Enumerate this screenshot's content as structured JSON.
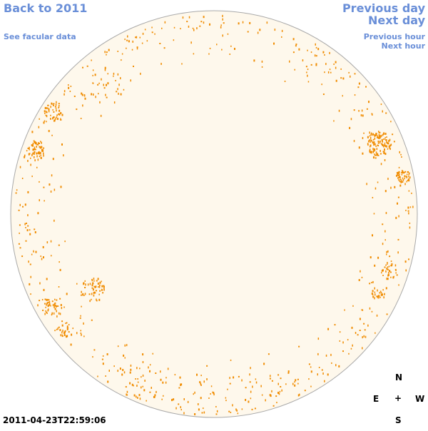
{
  "nav": {
    "back": "Back to 2011",
    "facular": "See facular data",
    "prev_day": "Previous day",
    "next_day": "Next day",
    "prev_hour": "Previous hour",
    "next_hour": "Next hour"
  },
  "timestamp": "2011-04-23T22:59:06",
  "compass": {
    "north": "N",
    "east": "E",
    "center": "+",
    "west": "W",
    "south": "S"
  },
  "colors": {
    "link": "#6a8fd8",
    "disk_fill": "#fef8ec",
    "disk_edge": "#a9a9a9",
    "facula": "#f08c00"
  }
}
